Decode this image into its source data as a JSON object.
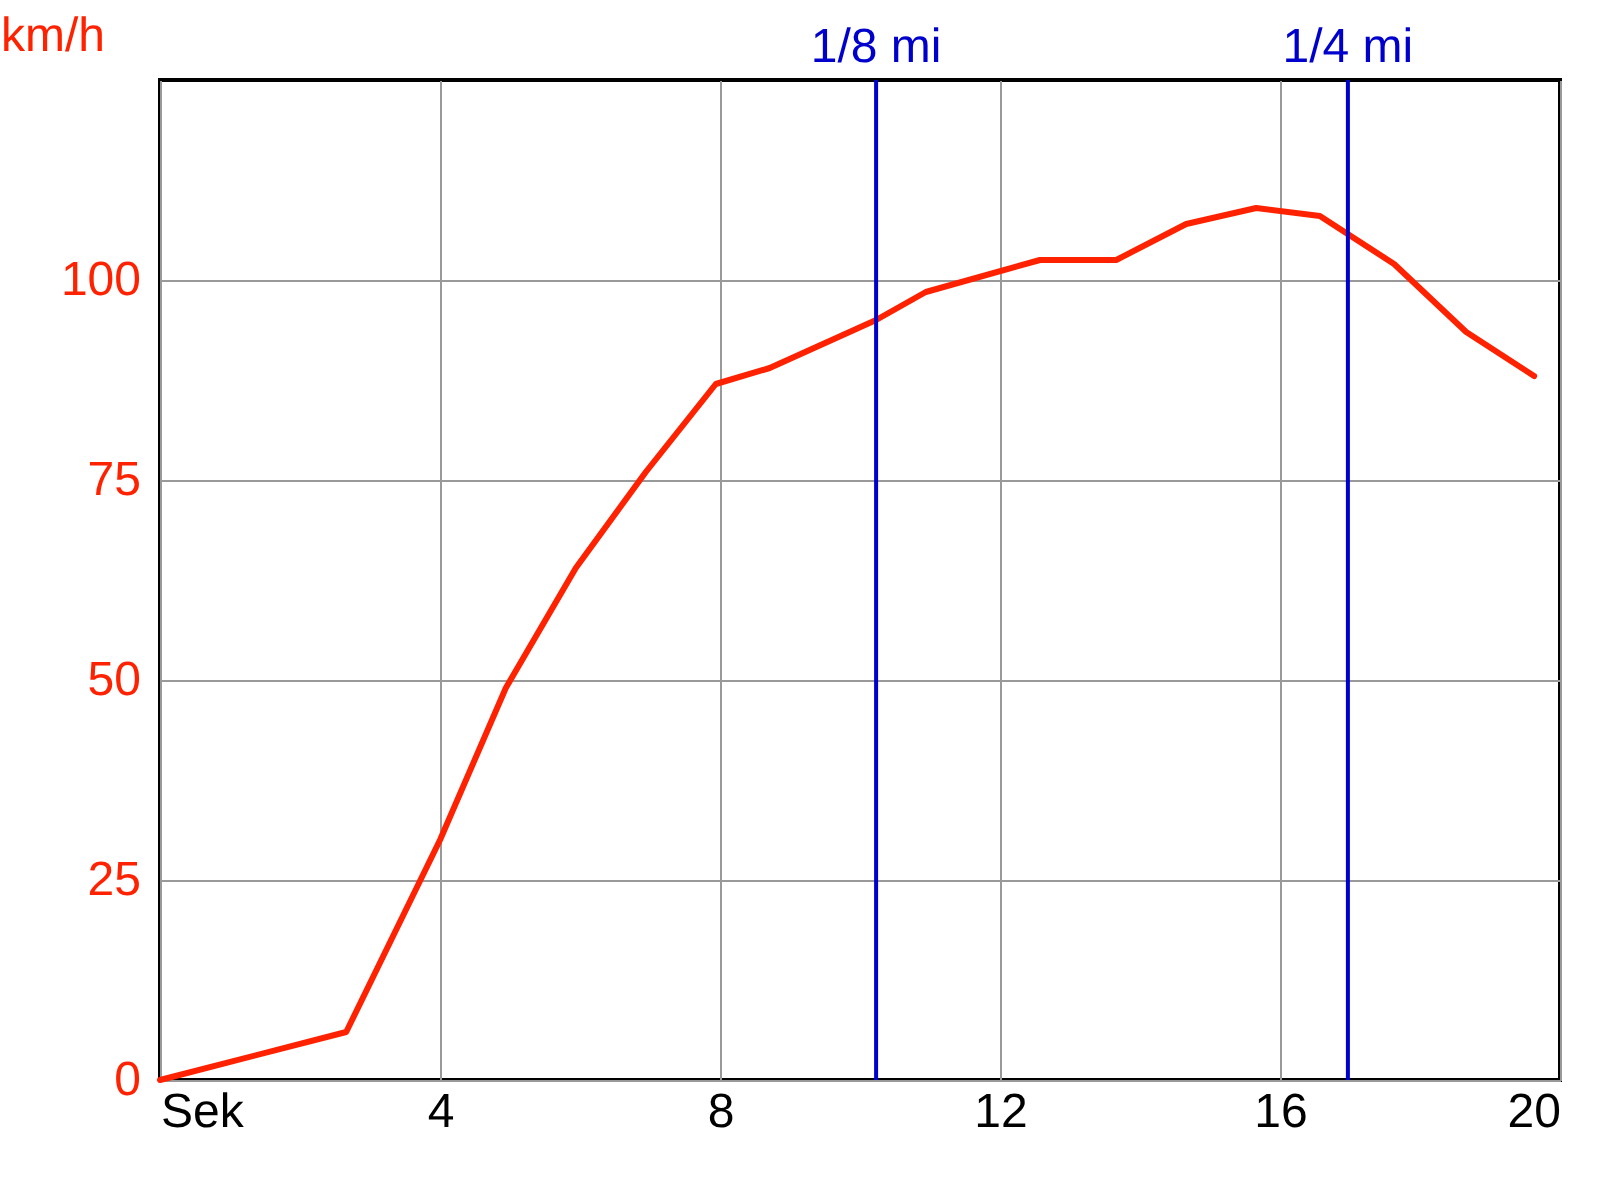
{
  "chart_data": {
    "type": "line",
    "ylabel": "km/h",
    "x": [
      0,
      2.66,
      4,
      4.94,
      5.94,
      6.94,
      7.94,
      8.71,
      10.23,
      10.94,
      12.57,
      13.66,
      14.66,
      15.66,
      16.57,
      17.63,
      18.66,
      19.63
    ],
    "series": [
      {
        "color": "#ff2200",
        "values": [
          0,
          6,
          30,
          49,
          64,
          76,
          87,
          89,
          95,
          98.5,
          102.5,
          102.5,
          107,
          109,
          108,
          102,
          93.5,
          88
        ]
      }
    ],
    "xlim": [
      0,
      20
    ],
    "xticks": [
      {
        "value": 0,
        "label": "Sek"
      },
      4,
      8,
      12,
      16,
      20
    ],
    "ylim": [
      0,
      125
    ],
    "yticks": [
      0,
      25,
      50,
      75,
      100
    ],
    "grid": true,
    "marker": "none",
    "line_style": "solid",
    "ref_lines": [
      {
        "axis": "x",
        "value": 10.23,
        "label": "1/8 mi",
        "color": "#0000cc"
      },
      {
        "axis": "x",
        "value": 16.97,
        "label": "1/4 mi",
        "color": "#0000cc"
      }
    ]
  }
}
